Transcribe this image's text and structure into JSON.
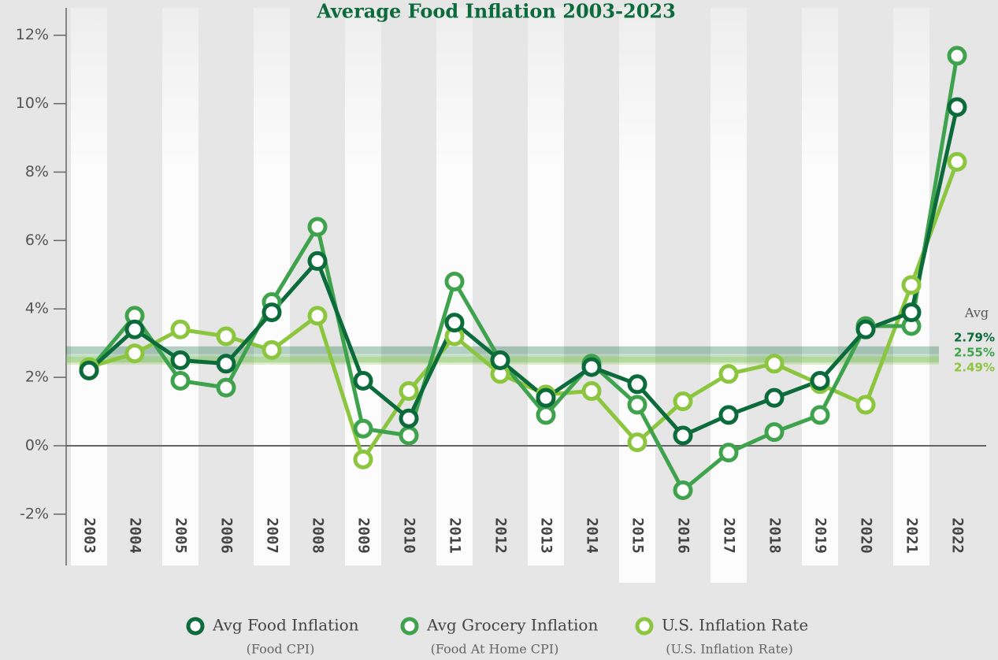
{
  "chart_data": {
    "type": "line",
    "title": "Average Food Inflation 2003-2023",
    "categories": [
      "2003",
      "2004",
      "2005",
      "2006",
      "2007",
      "2008",
      "2009",
      "2010",
      "2011",
      "2012",
      "2013",
      "2014",
      "2015",
      "2016",
      "2017",
      "2018",
      "2019",
      "2020",
      "2021",
      "2022"
    ],
    "series": [
      {
        "name": "Avg Food Inflation",
        "subtitle": "(Food CPI)",
        "color": "#0b6b3a",
        "average": 2.79,
        "average_label": "2.79%",
        "values": [
          2.2,
          3.4,
          2.5,
          2.4,
          3.9,
          5.4,
          1.9,
          0.8,
          3.6,
          2.5,
          1.4,
          2.3,
          1.8,
          0.3,
          0.9,
          1.4,
          1.9,
          3.4,
          3.9,
          9.9
        ]
      },
      {
        "name": "Avg Grocery Inflation",
        "subtitle": "(Food At Home CPI)",
        "color": "#3fa34d",
        "average": 2.55,
        "average_label": "2.55%",
        "values": [
          2.2,
          3.8,
          1.9,
          1.7,
          4.2,
          6.4,
          0.5,
          0.3,
          4.8,
          2.5,
          0.9,
          2.4,
          1.2,
          -1.3,
          -0.2,
          0.4,
          0.9,
          3.5,
          3.5,
          11.4
        ]
      },
      {
        "name": "U.S. Inflation Rate",
        "subtitle": "(U.S. Inflation Rate)",
        "color": "#8cc63f",
        "average": 2.49,
        "average_label": "2.49%",
        "values": [
          2.3,
          2.7,
          3.4,
          3.2,
          2.8,
          3.8,
          -0.4,
          1.6,
          3.2,
          2.1,
          1.5,
          1.6,
          0.1,
          1.3,
          2.1,
          2.4,
          1.8,
          1.2,
          4.7,
          8.3
        ]
      }
    ],
    "average_title": "Avg",
    "ylim": [
      -3.5,
      12.8
    ],
    "yticks": [
      {
        "value": -2,
        "label": "-2%"
      },
      {
        "value": 0,
        "label": "0%"
      },
      {
        "value": 2,
        "label": "2%"
      },
      {
        "value": 4,
        "label": "4%"
      },
      {
        "value": 6,
        "label": "6%"
      },
      {
        "value": 8,
        "label": "8%"
      },
      {
        "value": 10,
        "label": "10%"
      },
      {
        "value": 12,
        "label": "12%"
      }
    ]
  }
}
